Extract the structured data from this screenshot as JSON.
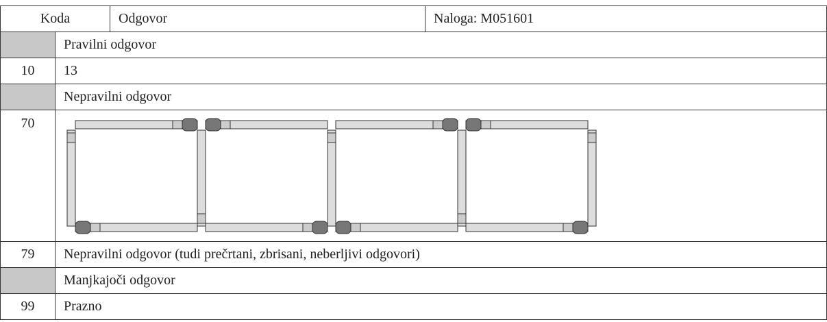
{
  "header": {
    "code": "Koda",
    "answer": "Odgovor",
    "task": "Naloga: M051601"
  },
  "rows": [
    {
      "text": "Pravilni odgovor"
    },
    {
      "code": "10",
      "text": "13"
    },
    {
      "text": "Nepravilni odgovor"
    },
    {
      "code": "70"
    },
    {
      "code": "79",
      "text": "Nepravilni odgovor (tudi prečrtani, zbrisani, neberljivi odgovori)"
    },
    {
      "text": "Manjkajoči odgovor"
    },
    {
      "code": "99",
      "text": "Prazno"
    }
  ]
}
